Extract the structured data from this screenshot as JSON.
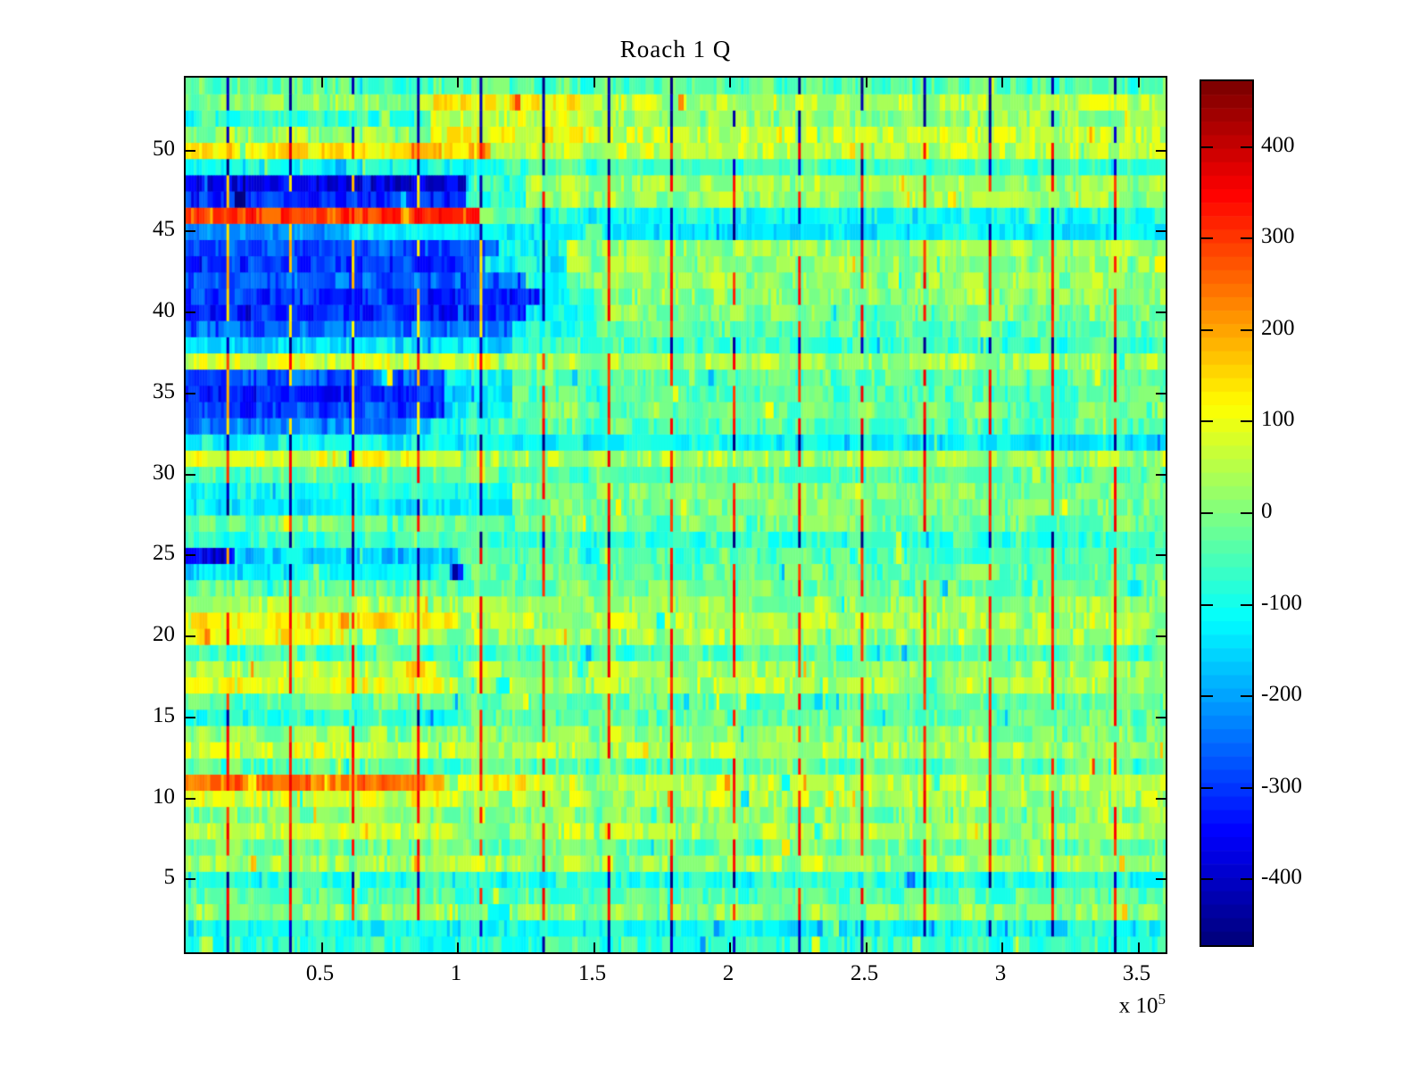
{
  "chart_data": {
    "type": "heatmap",
    "title": "Roach 1 Q",
    "colormap": "jet",
    "background": "#ffffff",
    "axis_color": "#000000",
    "x_axis": {
      "min": 0,
      "max": 3.6,
      "unit_exponent": 5,
      "exponent_base": "x 10",
      "exponent_power": "5",
      "ticks": [
        {
          "v": 0.5,
          "label": "0.5"
        },
        {
          "v": 1,
          "label": "1"
        },
        {
          "v": 1.5,
          "label": "1.5"
        },
        {
          "v": 2,
          "label": "2"
        },
        {
          "v": 2.5,
          "label": "2.5"
        },
        {
          "v": 3,
          "label": "3"
        },
        {
          "v": 3.5,
          "label": "3.5"
        }
      ]
    },
    "y_axis": {
      "min": 0.5,
      "max": 54.5,
      "ticks": [
        {
          "v": 5,
          "label": "5"
        },
        {
          "v": 10,
          "label": "10"
        },
        {
          "v": 15,
          "label": "15"
        },
        {
          "v": 20,
          "label": "20"
        },
        {
          "v": 25,
          "label": "25"
        },
        {
          "v": 30,
          "label": "30"
        },
        {
          "v": 35,
          "label": "35"
        },
        {
          "v": 40,
          "label": "40"
        },
        {
          "v": 45,
          "label": "45"
        },
        {
          "v": 50,
          "label": "50"
        }
      ]
    },
    "color_axis": {
      "min": -472,
      "max": 472,
      "ticks": [
        {
          "v": 400,
          "label": "400"
        },
        {
          "v": 300,
          "label": "300"
        },
        {
          "v": 200,
          "label": "200"
        },
        {
          "v": 100,
          "label": "100"
        },
        {
          "v": 0,
          "label": "0"
        },
        {
          "v": -100,
          "label": "-100"
        },
        {
          "v": -200,
          "label": "-200"
        },
        {
          "v": -300,
          "label": "-300"
        },
        {
          "v": -400,
          "label": "-400"
        }
      ]
    },
    "rows_note": "each row = [y index, noise amplitude, segments [x_start_e5, x_end_e5, mean value]]",
    "rows": [
      [
        1,
        60,
        [
          [
            0,
            3.6,
            -70
          ]
        ]
      ],
      [
        2,
        55,
        [
          [
            0,
            3.6,
            -110
          ]
        ]
      ],
      [
        3,
        60,
        [
          [
            0,
            3.6,
            10
          ]
        ]
      ],
      [
        4,
        60,
        [
          [
            0,
            3.6,
            -40
          ]
        ]
      ],
      [
        5,
        55,
        [
          [
            0,
            3.6,
            -90
          ]
        ]
      ],
      [
        6,
        65,
        [
          [
            0,
            3.6,
            30
          ]
        ]
      ],
      [
        7,
        60,
        [
          [
            0,
            3.6,
            -20
          ]
        ]
      ],
      [
        8,
        65,
        [
          [
            0,
            1,
            60
          ],
          [
            1,
            3.6,
            30
          ]
        ]
      ],
      [
        9,
        60,
        [
          [
            0,
            3.6,
            0
          ]
        ]
      ],
      [
        10,
        65,
        [
          [
            0,
            1,
            80
          ],
          [
            1,
            3.6,
            40
          ]
        ]
      ],
      [
        11,
        60,
        [
          [
            0,
            0.95,
            240
          ],
          [
            0.95,
            1.35,
            110
          ],
          [
            1.35,
            3.6,
            50
          ]
        ]
      ],
      [
        12,
        60,
        [
          [
            0,
            3.6,
            -40
          ]
        ]
      ],
      [
        13,
        65,
        [
          [
            0,
            1,
            70
          ],
          [
            1,
            3.6,
            40
          ]
        ]
      ],
      [
        14,
        60,
        [
          [
            0,
            3.6,
            10
          ]
        ]
      ],
      [
        15,
        55,
        [
          [
            0,
            1,
            -90
          ],
          [
            1,
            3.6,
            -30
          ]
        ]
      ],
      [
        16,
        60,
        [
          [
            0,
            3.6,
            -30
          ]
        ]
      ],
      [
        17,
        65,
        [
          [
            0,
            1,
            90
          ],
          [
            1,
            3.6,
            40
          ]
        ]
      ],
      [
        18,
        65,
        [
          [
            0,
            1,
            50
          ],
          [
            1,
            3.6,
            30
          ]
        ]
      ],
      [
        19,
        55,
        [
          [
            0,
            3.6,
            -50
          ]
        ]
      ],
      [
        20,
        65,
        [
          [
            0,
            0.6,
            100
          ],
          [
            0.6,
            3.6,
            30
          ]
        ]
      ],
      [
        21,
        70,
        [
          [
            0,
            1,
            110
          ],
          [
            1,
            3.6,
            40
          ]
        ]
      ],
      [
        22,
        60,
        [
          [
            0,
            1,
            40
          ],
          [
            1,
            3.6,
            20
          ]
        ]
      ],
      [
        23,
        60,
        [
          [
            0,
            3.6,
            -20
          ]
        ]
      ],
      [
        24,
        55,
        [
          [
            0,
            1,
            -140
          ],
          [
            1,
            3.6,
            -30
          ]
        ]
      ],
      [
        25,
        55,
        [
          [
            0,
            0.18,
            -380
          ],
          [
            0.18,
            1,
            -160
          ],
          [
            1,
            3.6,
            -50
          ]
        ]
      ],
      [
        26,
        55,
        [
          [
            0,
            3.6,
            -70
          ]
        ]
      ],
      [
        27,
        60,
        [
          [
            0,
            3.6,
            -20
          ]
        ]
      ],
      [
        28,
        55,
        [
          [
            0,
            1.2,
            -130
          ],
          [
            1.2,
            3.6,
            -10
          ]
        ]
      ],
      [
        29,
        55,
        [
          [
            0,
            1.2,
            -100
          ],
          [
            1.2,
            3.6,
            0
          ]
        ]
      ],
      [
        30,
        55,
        [
          [
            0,
            3.6,
            -40
          ]
        ]
      ],
      [
        31,
        65,
        [
          [
            0,
            1,
            90
          ],
          [
            1,
            3.6,
            30
          ]
        ]
      ],
      [
        32,
        50,
        [
          [
            0,
            3.6,
            -120
          ]
        ]
      ],
      [
        33,
        60,
        [
          [
            0,
            0.9,
            -240
          ],
          [
            0.9,
            1.15,
            -100
          ],
          [
            1.15,
            3.6,
            -40
          ]
        ]
      ],
      [
        34,
        60,
        [
          [
            0,
            0.95,
            -300
          ],
          [
            0.95,
            1.2,
            -120
          ],
          [
            1.2,
            3.6,
            -20
          ]
        ]
      ],
      [
        35,
        55,
        [
          [
            0,
            0.95,
            -330
          ],
          [
            0.95,
            1.2,
            -140
          ],
          [
            1.2,
            3.6,
            -40
          ]
        ]
      ],
      [
        36,
        60,
        [
          [
            0,
            0.95,
            -280
          ],
          [
            0.95,
            1.2,
            -120
          ],
          [
            1.2,
            3.6,
            -30
          ]
        ]
      ],
      [
        37,
        65,
        [
          [
            0,
            1.2,
            70
          ],
          [
            1.2,
            3.6,
            30
          ]
        ]
      ],
      [
        38,
        55,
        [
          [
            0,
            1.2,
            -140
          ],
          [
            1.2,
            3.6,
            -60
          ]
        ]
      ],
      [
        39,
        60,
        [
          [
            0,
            1.2,
            -260
          ],
          [
            1.2,
            1.45,
            -100
          ],
          [
            1.45,
            3.6,
            -30
          ]
        ]
      ],
      [
        40,
        60,
        [
          [
            0,
            1.25,
            -330
          ],
          [
            1.25,
            1.5,
            -120
          ],
          [
            1.5,
            3.6,
            0
          ]
        ]
      ],
      [
        41,
        60,
        [
          [
            0,
            1.3,
            -310
          ],
          [
            1.3,
            1.5,
            -100
          ],
          [
            1.5,
            3.6,
            10
          ]
        ]
      ],
      [
        42,
        60,
        [
          [
            0,
            1.25,
            -270
          ],
          [
            1.25,
            1.45,
            -90
          ],
          [
            1.45,
            3.6,
            20
          ]
        ]
      ],
      [
        43,
        60,
        [
          [
            0,
            1.1,
            -300
          ],
          [
            1.1,
            1.4,
            -110
          ],
          [
            1.4,
            3.6,
            10
          ]
        ]
      ],
      [
        44,
        60,
        [
          [
            0,
            1.15,
            -280
          ],
          [
            1.15,
            1.4,
            -100
          ],
          [
            1.4,
            3.6,
            20
          ]
        ]
      ],
      [
        45,
        50,
        [
          [
            0,
            0.6,
            -220
          ],
          [
            0.6,
            3.6,
            -130
          ]
        ]
      ],
      [
        46,
        55,
        [
          [
            0,
            1.08,
            300
          ],
          [
            1.08,
            1.3,
            -20
          ],
          [
            1.3,
            3.6,
            -100
          ]
        ]
      ],
      [
        47,
        60,
        [
          [
            0,
            1.03,
            -320
          ],
          [
            1.03,
            1.25,
            -80
          ],
          [
            1.25,
            3.6,
            20
          ]
        ]
      ],
      [
        48,
        60,
        [
          [
            0,
            1.03,
            -380
          ],
          [
            1.03,
            1.25,
            -60
          ],
          [
            1.25,
            3.6,
            30
          ]
        ]
      ],
      [
        49,
        50,
        [
          [
            0,
            1.15,
            -110
          ],
          [
            1.15,
            3.6,
            -60
          ]
        ]
      ],
      [
        50,
        60,
        [
          [
            0,
            1.1,
            140
          ],
          [
            1.1,
            3.6,
            60
          ]
        ]
      ],
      [
        51,
        65,
        [
          [
            0,
            0.9,
            20
          ],
          [
            0.9,
            1.5,
            110
          ],
          [
            1.5,
            3.6,
            60
          ]
        ]
      ],
      [
        52,
        60,
        [
          [
            0,
            0.9,
            -80
          ],
          [
            0.9,
            1.5,
            70
          ],
          [
            1.5,
            3.6,
            20
          ]
        ]
      ],
      [
        53,
        65,
        [
          [
            0,
            0.9,
            10
          ],
          [
            0.9,
            1.5,
            120
          ],
          [
            1.5,
            3.6,
            50
          ]
        ]
      ],
      [
        54,
        60,
        [
          [
            0,
            3.6,
            -40
          ]
        ]
      ]
    ],
    "vertical_lines": {
      "positions": [
        0.15,
        0.38,
        0.61,
        0.85,
        1.08,
        1.31,
        1.55,
        1.78,
        2.01,
        2.25,
        2.48,
        2.71,
        2.95,
        3.18,
        3.41
      ],
      "rule": {
        "deep_negative_below": -200,
        "value_in_deep_negative": 160,
        "cyan_below": -60,
        "value_in_cyan": -445,
        "top_blue_from_row": 51,
        "value_default": 330
      }
    }
  }
}
